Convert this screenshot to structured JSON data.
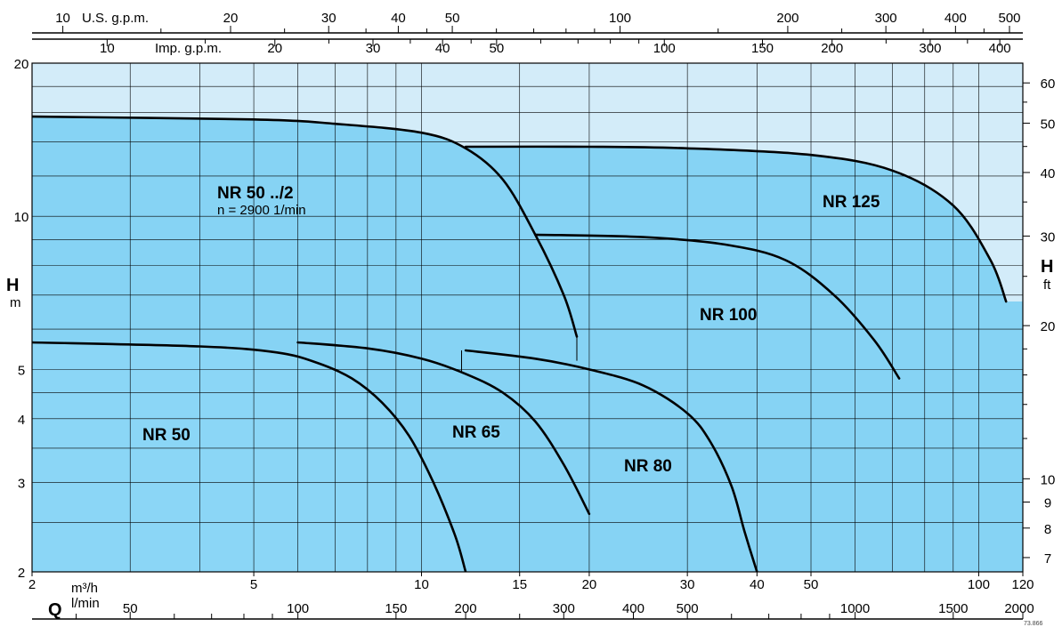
{
  "chart_data": {
    "type": "line",
    "x_scale": "log",
    "y_scale": "log",
    "xlabel": "Q",
    "x_unit_primary": "m³/h",
    "x_unit_secondary": "l/min",
    "ylabel": "H",
    "y_unit_primary": "m",
    "y_unit_secondary": "ft",
    "top_axis_us_label": "U.S. g.p.m.",
    "top_axis_imp_label": "Imp. g.p.m.",
    "xlim": [
      2,
      120
    ],
    "ylim": [
      2,
      20
    ],
    "grid": true,
    "x_ticks_m3h": [
      "2",
      "5",
      "10",
      "15",
      "20",
      "30",
      "40",
      "50",
      "100",
      "120"
    ],
    "x_ticks_lmin": [
      "50",
      "100",
      "150",
      "200",
      "300",
      "400",
      "500",
      "1000",
      "1500",
      "2000"
    ],
    "y_ticks_m": [
      "2",
      "3",
      "4",
      "5",
      "10",
      "20"
    ],
    "y_ticks_ft": [
      "7",
      "8",
      "9",
      "10",
      "20",
      "30",
      "40",
      "50",
      "60"
    ],
    "top_ticks_us": [
      "10",
      "20",
      "30",
      "40",
      "50",
      "100",
      "200",
      "300",
      "400",
      "500"
    ],
    "top_ticks_imp": [
      "10",
      "20",
      "30",
      "40",
      "50",
      "100",
      "150",
      "200",
      "300",
      "400"
    ],
    "speed_annotation": "n = 2900 1/min",
    "reference_code": "73.866",
    "colors": {
      "plot_background": "#d3ecf9",
      "fill_low": "#8bd6f6",
      "fill_mid": "#86d3f4",
      "curve": "#000000",
      "grid": "#000000"
    },
    "series": [
      {
        "name": "NR 50 ../2",
        "x": [
          2,
          5,
          7,
          10,
          12,
          14,
          16,
          18,
          19
        ],
        "y": [
          15.7,
          15.5,
          15.2,
          14.6,
          13.6,
          11.8,
          9.2,
          7,
          5.8
        ]
      },
      {
        "name": "NR 125",
        "x": [
          12,
          20,
          30,
          50,
          70,
          90,
          105,
          112
        ],
        "y": [
          13.7,
          13.7,
          13.6,
          13.2,
          12.3,
          10.5,
          8.2,
          6.8
        ]
      },
      {
        "name": "NR 100",
        "x": [
          16,
          25,
          35,
          45,
          55,
          65,
          72
        ],
        "y": [
          9.2,
          9.1,
          8.8,
          8.2,
          7,
          5.7,
          4.8
        ]
      },
      {
        "name": "NR 50",
        "x": [
          2,
          4,
          5.5,
          6.5,
          7.5,
          8.5,
          9.5,
          10.5,
          11.5,
          12
        ],
        "y": [
          5.65,
          5.55,
          5.4,
          5.15,
          4.8,
          4.3,
          3.7,
          3.0,
          2.35,
          2
        ]
      },
      {
        "name": "NR 65",
        "x": [
          6,
          8,
          10,
          12,
          14,
          16,
          18,
          20
        ],
        "y": [
          5.65,
          5.5,
          5.25,
          4.9,
          4.5,
          3.95,
          3.25,
          2.6
        ]
      },
      {
        "name": "NR 80",
        "x": [
          12,
          16,
          20,
          25,
          30,
          33,
          36,
          38,
          40
        ],
        "y": [
          5.45,
          5.25,
          5.0,
          4.65,
          4.1,
          3.6,
          2.95,
          2.4,
          2
        ]
      }
    ],
    "annotations": [
      "NR 50 ../2",
      "NR 125",
      "NR 100",
      "NR 50",
      "NR 65",
      "NR 80"
    ]
  }
}
